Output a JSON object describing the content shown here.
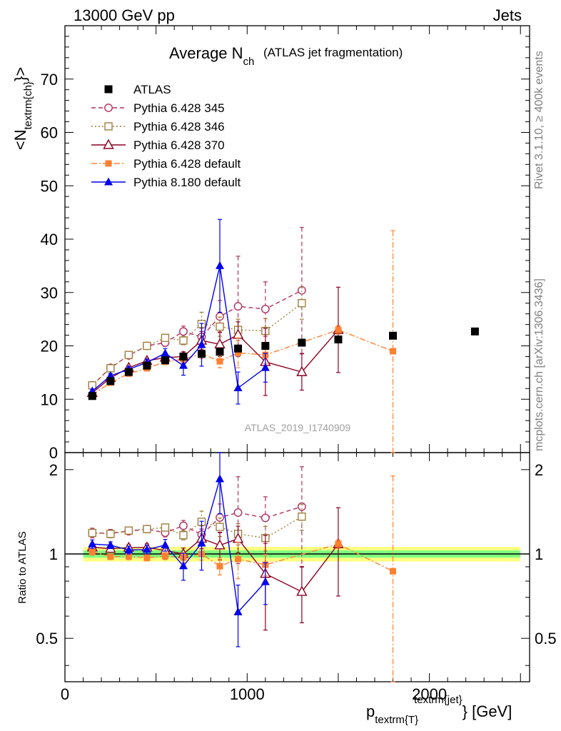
{
  "header": {
    "left": "13000 GeV pp",
    "right": "Jets"
  },
  "side_labels": {
    "rivet": "Rivet 3.1.10, ≥ 400k events",
    "mcplots": "mcplots.cern.ch [arXiv:1306.3436]"
  },
  "chart_data": {
    "type": "scatter",
    "title_main": "Average N",
    "title_sub": "ch",
    "title_extra": "(ATLAS jet fragmentation)",
    "analysis_label": "ATLAS_2019_I1740909",
    "xlabel": {
      "base": "p",
      "sub": "textrm{T}",
      "sup": "textrm{jet}",
      "tail": "} [GeV]"
    },
    "ylabel_main": {
      "base": "<N",
      "sub": "textrm{ch}",
      "tail": "}>"
    },
    "ylabel_ratio": "Ratio to ATLAS",
    "xlim": [
      0,
      2550
    ],
    "ylim_main": [
      0,
      80
    ],
    "ylim_ratio": [
      0.35,
      2.3
    ],
    "x_ticks": [
      0,
      1000,
      2000
    ],
    "y_ticks_main": [
      0,
      10,
      20,
      30,
      40,
      50,
      60,
      70
    ],
    "y_ticks_ratio": [
      0.5,
      1,
      2
    ],
    "legend_position": "top-left",
    "reference_band": {
      "x_range": [
        100,
        2500
      ],
      "inner_half_width": 0.03,
      "outer_half_width": 0.06,
      "colors": [
        "#ffff80",
        "#80ff80"
      ]
    },
    "series": [
      {
        "name": "ATLAS",
        "color": "#000000",
        "marker": "square-filled",
        "line": "none",
        "x": [
          150,
          250,
          350,
          450,
          550,
          650,
          750,
          850,
          950,
          1100,
          1300,
          1500,
          1800,
          2250
        ],
        "y": [
          10.6,
          13.4,
          15.1,
          16.3,
          17.3,
          18.0,
          18.5,
          18.9,
          19.5,
          20.0,
          20.6,
          21.2,
          21.9,
          22.7
        ]
      },
      {
        "name": "Pythia 6.428 345",
        "color": "#b03060",
        "marker": "circle-open",
        "line": "dashed",
        "x": [
          150,
          250,
          350,
          450,
          550,
          650,
          750,
          850,
          950,
          1100,
          1300
        ],
        "y": [
          12.6,
          15.9,
          18.2,
          20.0,
          20.6,
          22.7,
          21.7,
          25.5,
          27.4,
          26.9,
          30.4
        ],
        "err": [
          0.5,
          0.5,
          0.5,
          0.6,
          0.7,
          1.0,
          1.6,
          3.0,
          9.4,
          5.1,
          11.8
        ]
      },
      {
        "name": "Pythia 6.428 346",
        "color": "#a08040",
        "marker": "square-open",
        "line": "dotted",
        "x": [
          150,
          250,
          350,
          450,
          550,
          650,
          750,
          850,
          950,
          1100,
          1300
        ],
        "y": [
          12.6,
          15.8,
          18.3,
          20.0,
          21.5,
          21.0,
          24.1,
          23.6,
          23.0,
          22.8,
          28.0
        ],
        "err": [
          0.4,
          0.5,
          0.5,
          0.5,
          0.6,
          0.8,
          2.2,
          1.8,
          2.0,
          2.3,
          3.0
        ]
      },
      {
        "name": "Pythia 6.428 370",
        "color": "#8b0020",
        "marker": "triangle-open",
        "line": "solid",
        "x": [
          150,
          250,
          350,
          450,
          550,
          650,
          750,
          850,
          950,
          1100,
          1300,
          1500
        ],
        "y": [
          11.2,
          14.0,
          15.9,
          17.2,
          17.8,
          18.0,
          21.0,
          20.3,
          22.1,
          17.0,
          15.1,
          23.0
        ],
        "err": [
          0.3,
          0.4,
          0.4,
          0.5,
          0.6,
          0.9,
          1.7,
          2.3,
          2.4,
          6.3,
          3.4,
          8.0
        ]
      },
      {
        "name": "Pythia 6.428 default",
        "color": "#ff8030",
        "marker": "square-filled-small",
        "line": "dashdot",
        "x": [
          150,
          250,
          350,
          450,
          550,
          650,
          750,
          850,
          950,
          1100,
          1500,
          1800
        ],
        "y": [
          10.8,
          13.1,
          14.8,
          15.8,
          17.0,
          17.5,
          18.5,
          17.1,
          18.7,
          18.3,
          23.0,
          19.0
        ],
        "err": [
          0.3,
          0.3,
          0.4,
          0.4,
          0.5,
          0.7,
          0.9,
          1.2,
          2.8,
          1.6,
          0.8,
          22.6
        ]
      },
      {
        "name": "Pythia 8.180 default",
        "color": "#0000ee",
        "marker": "triangle-filled",
        "line": "solid",
        "x": [
          150,
          250,
          350,
          450,
          550,
          650,
          750,
          850,
          950,
          1100
        ],
        "y": [
          11.5,
          14.4,
          15.6,
          16.9,
          18.6,
          16.3,
          20.2,
          35.0,
          12.1,
          15.9
        ],
        "err": [
          0.4,
          0.4,
          0.5,
          0.6,
          0.9,
          1.8,
          4.0,
          8.7,
          3.0,
          2.7
        ]
      }
    ]
  }
}
